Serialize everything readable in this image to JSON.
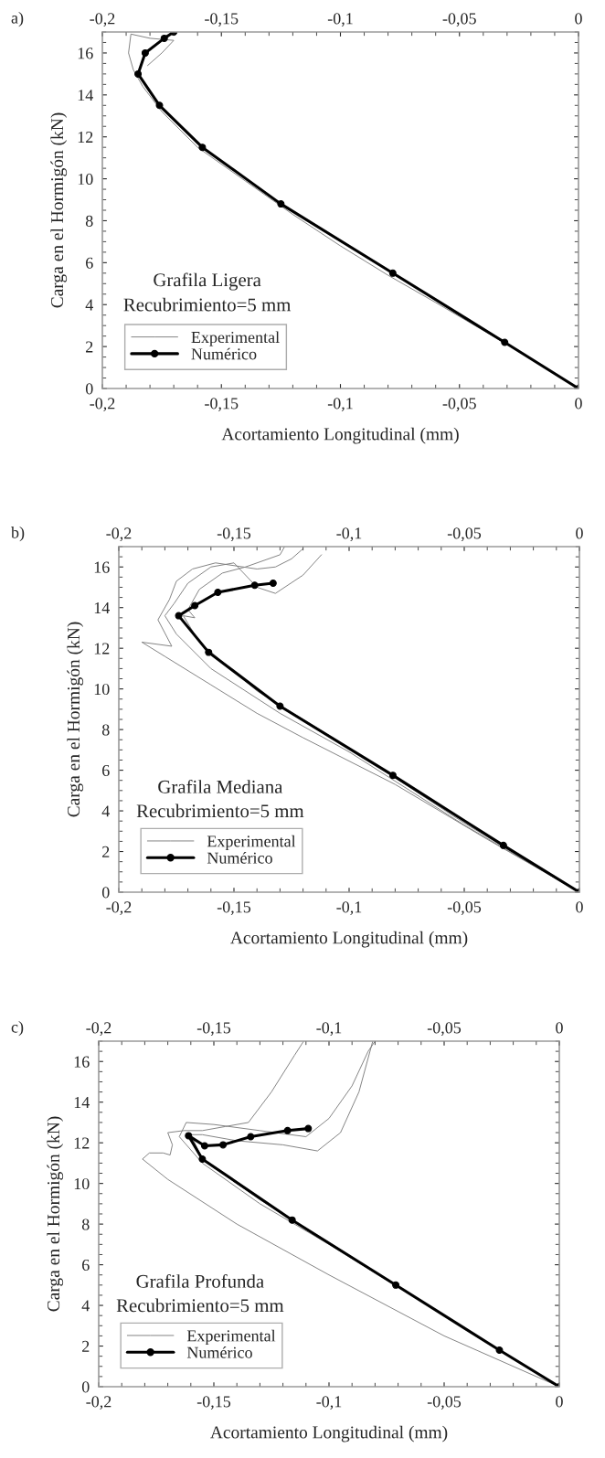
{
  "chart_data": [
    {
      "type": "line",
      "xlabel": "Acortamiento Longitudinal (mm)",
      "ylabel": "Carga en el Hormigón (kN)",
      "annotations": [
        "a)",
        "Grafila Ligera",
        "Recubrimiento=5 mm"
      ],
      "xlim": [
        -0.2,
        0
      ],
      "xticks": [
        {
          "value": -0.2,
          "label": "-0,2"
        },
        {
          "value": -0.15,
          "label": "-0,15"
        },
        {
          "value": -0.1,
          "label": "-0,1"
        },
        {
          "value": -0.05,
          "label": "-0,05"
        },
        0
      ],
      "x2lim": [
        -0.2,
        0
      ],
      "x2ticks": [
        {
          "value": -0.2,
          "label": "-0,2"
        },
        {
          "value": -0.15,
          "label": "-0,15"
        },
        {
          "value": -0.1,
          "label": "-0,1"
        },
        {
          "value": -0.05,
          "label": "-0,05"
        },
        0
      ],
      "ylim": [
        0,
        17
      ],
      "yticks": [
        0,
        2,
        4,
        6,
        8,
        10,
        12,
        14,
        16
      ],
      "grid": false,
      "legend": "bottom left",
      "series": [
        {
          "name": "Experimental",
          "color": "#808080",
          "marker": "none",
          "x": [
            0,
            -0.03,
            -0.06,
            -0.08,
            -0.1,
            -0.12,
            -0.14,
            -0.16,
            -0.175,
            -0.183,
            -0.187,
            -0.189,
            -0.188,
            -0.18,
            -0.17,
            -0.175,
            -0.181
          ],
          "values": [
            0,
            2.1,
            4.1,
            5.4,
            6.8,
            8.3,
            9.9,
            11.5,
            13.2,
            14.4,
            15.2,
            16,
            16.9,
            16.7,
            16.6,
            16.0,
            15.4
          ]
        },
        {
          "name": "Numérico",
          "color": "#000000",
          "marker": "circle",
          "x": [
            0,
            -0.031,
            -0.078,
            -0.125,
            -0.158,
            -0.176,
            -0.185,
            -0.182,
            -0.174,
            -0.17
          ],
          "values": [
            0,
            2.2,
            5.5,
            8.8,
            11.5,
            13.5,
            15.0,
            16.0,
            16.7,
            17.0
          ]
        }
      ]
    },
    {
      "type": "line",
      "xlabel": "Acortamiento Longitudinal (mm)",
      "ylabel": "Carga en el Hormigón (kN)",
      "annotations": [
        "b)",
        "Grafila Mediana",
        "Recubrimiento=5 mm"
      ],
      "xlim": [
        -0.2,
        0
      ],
      "xticks": [
        {
          "value": -0.2,
          "label": "-0,2"
        },
        {
          "value": -0.15,
          "label": "-0,15"
        },
        {
          "value": -0.1,
          "label": "-0,1"
        },
        {
          "value": -0.05,
          "label": "-0,05"
        },
        0
      ],
      "x2lim": [
        -0.2,
        0
      ],
      "x2ticks": [
        {
          "value": -0.2,
          "label": "-0,2"
        },
        {
          "value": -0.15,
          "label": "-0,15"
        },
        {
          "value": -0.1,
          "label": "-0,1"
        },
        {
          "value": -0.05,
          "label": "-0,05"
        },
        0
      ],
      "ylim": [
        0,
        17
      ],
      "yticks": [
        0,
        2,
        4,
        6,
        8,
        10,
        12,
        14,
        16
      ],
      "grid": false,
      "legend": "bottom left",
      "series": [
        {
          "name": "Experimental",
          "color": "#808080",
          "marker": "none",
          "x": [
            0,
            -0.04,
            -0.08,
            -0.12,
            -0.14,
            -0.16,
            -0.18,
            -0.19,
            -0.177,
            -0.183,
            -0.178,
            -0.175,
            -0.168,
            -0.158,
            -0.14,
            -0.132,
            -0.125,
            -0.12
          ],
          "values": [
            0,
            2.6,
            5.3,
            7.6,
            8.8,
            10.2,
            11.6,
            12.3,
            12.1,
            13.4,
            14.4,
            15.3,
            15.9,
            16.2,
            15.9,
            16.0,
            16.4,
            16.9
          ]
        },
        {
          "color": "#808080",
          "marker": "none",
          "x": [
            0,
            -0.05,
            -0.1,
            -0.13,
            -0.16,
            -0.175,
            -0.18,
            -0.176,
            -0.17,
            -0.16,
            -0.15,
            -0.14,
            -0.132,
            -0.12,
            -0.112
          ],
          "values": [
            0,
            3.3,
            6.9,
            8.8,
            11.0,
            12.7,
            13.6,
            14.2,
            15.2,
            16.0,
            16.2,
            15.0,
            14.7,
            15.6,
            16.6
          ]
        },
        {
          "color": "#808080",
          "marker": "none",
          "x": [
            0,
            -0.05,
            -0.1,
            -0.14,
            -0.165,
            -0.172,
            -0.167,
            -0.17,
            -0.165,
            -0.155,
            -0.145,
            -0.13,
            -0.128
          ],
          "values": [
            0,
            3.4,
            7.1,
            9.9,
            12.3,
            13.6,
            13.5,
            13.9,
            14.9,
            15.7,
            16.0,
            16.6,
            17.0
          ]
        },
        {
          "name": "Numérico",
          "color": "#000000",
          "marker": "circle",
          "x": [
            0,
            -0.033,
            -0.081,
            -0.13,
            -0.161,
            -0.174,
            -0.167,
            -0.157,
            -0.141,
            -0.133
          ],
          "values": [
            0,
            2.3,
            5.75,
            9.15,
            11.8,
            13.6,
            14.1,
            14.75,
            15.1,
            15.2
          ]
        }
      ]
    },
    {
      "type": "line",
      "xlabel": "Acortamiento Longitudinal (mm)",
      "ylabel": "Carga en el Hormigón (kN)",
      "annotations": [
        "c)",
        "Grafila Profunda",
        "Recubrimiento=5 mm"
      ],
      "xlim": [
        -0.2,
        0
      ],
      "xticks": [
        {
          "value": -0.2,
          "label": "-0,2"
        },
        {
          "value": -0.15,
          "label": "-0,15"
        },
        {
          "value": -0.1,
          "label": "-0,1"
        },
        {
          "value": -0.05,
          "label": "-0,05"
        },
        0
      ],
      "x2lim": [
        -0.2,
        0
      ],
      "x2ticks": [
        {
          "value": -0.2,
          "label": "-0,2"
        },
        {
          "value": -0.15,
          "label": "-0,15"
        },
        {
          "value": -0.1,
          "label": "-0,1"
        },
        {
          "value": -0.05,
          "label": "-0,05"
        },
        0
      ],
      "ylim": [
        0,
        17
      ],
      "yticks": [
        0,
        2,
        4,
        6,
        8,
        10,
        12,
        14,
        16
      ],
      "grid": false,
      "legend": "bottom left",
      "series": [
        {
          "name": "Experimental",
          "color": "#808080",
          "marker": "none",
          "x": [
            0,
            -0.05,
            -0.1,
            -0.14,
            -0.17,
            -0.181,
            -0.178,
            -0.172,
            -0.169,
            -0.168,
            -0.17,
            -0.163,
            -0.155,
            -0.145,
            -0.135,
            -0.125,
            -0.115,
            -0.111
          ],
          "values": [
            0,
            2.5,
            5.5,
            8.0,
            10.2,
            11.2,
            11.5,
            11.5,
            11.4,
            11.9,
            12.5,
            12.6,
            12.6,
            12.8,
            13.0,
            14.5,
            16.3,
            17.0
          ]
        },
        {
          "color": "#808080",
          "marker": "none",
          "x": [
            0,
            -0.05,
            -0.1,
            -0.13,
            -0.155,
            -0.165,
            -0.162,
            -0.15,
            -0.13,
            -0.11,
            -0.1,
            -0.09,
            -0.083,
            -0.08
          ],
          "values": [
            0,
            3.5,
            7.0,
            9.0,
            11.0,
            12.3,
            13.0,
            12.9,
            12.6,
            12.3,
            13.2,
            14.8,
            16.5,
            17.0
          ]
        },
        {
          "color": "#808080",
          "marker": "none",
          "x": [
            0,
            -0.05,
            -0.1,
            -0.13,
            -0.155,
            -0.16,
            -0.155,
            -0.14,
            -0.12,
            -0.105,
            -0.095,
            -0.087,
            -0.081
          ],
          "values": [
            0,
            3.5,
            7.1,
            9.2,
            11.2,
            12.4,
            12.4,
            12.1,
            11.9,
            11.6,
            12.5,
            14.5,
            17.0
          ]
        },
        {
          "name": "Numérico",
          "color": "#000000",
          "marker": "circle",
          "x": [
            0,
            -0.026,
            -0.071,
            -0.116,
            -0.155,
            -0.161,
            -0.154,
            -0.146,
            -0.134,
            -0.118,
            -0.109
          ],
          "values": [
            0,
            1.8,
            5.0,
            8.2,
            11.2,
            12.35,
            11.85,
            11.9,
            12.3,
            12.6,
            12.7
          ]
        }
      ]
    }
  ]
}
